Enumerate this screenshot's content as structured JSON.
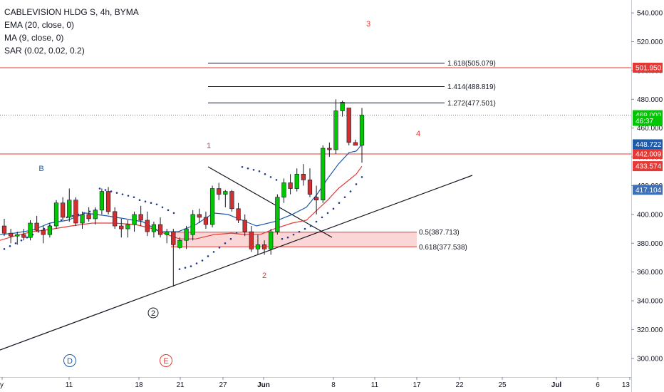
{
  "legend": {
    "symbol": "CABLEVISION HLDG S, 4h, BYMA",
    "ema": "EMA (20, close, 0)",
    "ma": "MA (9, close, 0)",
    "sar": "SAR (0.02, 0.02, 0.2)"
  },
  "colors": {
    "up": "#00c800",
    "down": "#d32f2f",
    "ema": "#e53935",
    "ma": "#1e5aa8",
    "sar": "#1e3c96",
    "hline_red": "#e53935",
    "hline_green": "#00c800",
    "fib_zone": "#f8c8c8"
  },
  "chart_data": {
    "type": "candlestick",
    "ylim": [
      292,
      548
    ],
    "y_ticks": [
      "300.000",
      "320.000",
      "340.000",
      "360.000",
      "380.000",
      "400.000",
      "420.000",
      "440.000",
      "460.000",
      "480.000",
      "500.000",
      "520.000",
      "540.000"
    ],
    "x_tick_labels": [
      "y",
      "11",
      "18",
      "21",
      "27",
      "Jun",
      "8",
      "11",
      "17",
      "22",
      "25",
      "Jul",
      "6",
      "13"
    ],
    "candles": [
      {
        "o": 392,
        "h": 397,
        "l": 385,
        "c": 387
      },
      {
        "o": 387,
        "h": 390,
        "l": 380,
        "c": 385
      },
      {
        "o": 385,
        "h": 388,
        "l": 379,
        "c": 386
      },
      {
        "o": 386,
        "h": 390,
        "l": 382,
        "c": 384
      },
      {
        "o": 384,
        "h": 396,
        "l": 382,
        "c": 394
      },
      {
        "o": 394,
        "h": 399,
        "l": 388,
        "c": 389
      },
      {
        "o": 389,
        "h": 392,
        "l": 380,
        "c": 386
      },
      {
        "o": 386,
        "h": 394,
        "l": 384,
        "c": 392
      },
      {
        "o": 392,
        "h": 410,
        "l": 390,
        "c": 408
      },
      {
        "o": 408,
        "h": 412,
        "l": 396,
        "c": 398
      },
      {
        "o": 398,
        "h": 418,
        "l": 395,
        "c": 410
      },
      {
        "o": 410,
        "h": 412,
        "l": 392,
        "c": 394
      },
      {
        "o": 394,
        "h": 402,
        "l": 390,
        "c": 400
      },
      {
        "o": 400,
        "h": 405,
        "l": 395,
        "c": 397
      },
      {
        "o": 397,
        "h": 405,
        "l": 393,
        "c": 403
      },
      {
        "o": 403,
        "h": 418,
        "l": 400,
        "c": 416
      },
      {
        "o": 416,
        "h": 419,
        "l": 400,
        "c": 402
      },
      {
        "o": 402,
        "h": 405,
        "l": 390,
        "c": 392
      },
      {
        "o": 392,
        "h": 397,
        "l": 384,
        "c": 390
      },
      {
        "o": 390,
        "h": 396,
        "l": 384,
        "c": 393
      },
      {
        "o": 393,
        "h": 402,
        "l": 388,
        "c": 400
      },
      {
        "o": 400,
        "h": 406,
        "l": 392,
        "c": 396
      },
      {
        "o": 396,
        "h": 402,
        "l": 385,
        "c": 388
      },
      {
        "o": 388,
        "h": 395,
        "l": 384,
        "c": 393
      },
      {
        "o": 393,
        "h": 398,
        "l": 384,
        "c": 386
      },
      {
        "o": 386,
        "h": 390,
        "l": 380,
        "c": 388
      },
      {
        "o": 388,
        "h": 390,
        "l": 350,
        "c": 379
      },
      {
        "o": 377,
        "h": 384,
        "l": 376,
        "c": 382
      },
      {
        "o": 382,
        "h": 392,
        "l": 376,
        "c": 390
      },
      {
        "o": 386,
        "h": 403,
        "l": 382,
        "c": 400
      },
      {
        "o": 400,
        "h": 404,
        "l": 394,
        "c": 398
      },
      {
        "o": 398,
        "h": 402,
        "l": 390,
        "c": 393
      },
      {
        "o": 393,
        "h": 420,
        "l": 391,
        "c": 418
      },
      {
        "o": 418,
        "h": 422,
        "l": 410,
        "c": 414
      },
      {
        "o": 414,
        "h": 417,
        "l": 405,
        "c": 416
      },
      {
        "o": 416,
        "h": 417,
        "l": 402,
        "c": 404
      },
      {
        "o": 404,
        "h": 408,
        "l": 394,
        "c": 396
      },
      {
        "o": 396,
        "h": 400,
        "l": 385,
        "c": 388
      },
      {
        "o": 388,
        "h": 392,
        "l": 374,
        "c": 376
      },
      {
        "o": 376,
        "h": 386,
        "l": 372,
        "c": 379
      },
      {
        "o": 379,
        "h": 382,
        "l": 372,
        "c": 376
      },
      {
        "o": 376,
        "h": 390,
        "l": 372,
        "c": 388
      },
      {
        "o": 388,
        "h": 414,
        "l": 386,
        "c": 412
      },
      {
        "o": 412,
        "h": 425,
        "l": 408,
        "c": 422
      },
      {
        "o": 422,
        "h": 428,
        "l": 414,
        "c": 418
      },
      {
        "o": 418,
        "h": 432,
        "l": 416,
        "c": 428
      },
      {
        "o": 428,
        "h": 435,
        "l": 420,
        "c": 424
      },
      {
        "o": 424,
        "h": 432,
        "l": 412,
        "c": 414
      },
      {
        "o": 412,
        "h": 420,
        "l": 400,
        "c": 410
      },
      {
        "o": 410,
        "h": 448,
        "l": 408,
        "c": 446
      },
      {
        "o": 446,
        "h": 450,
        "l": 440,
        "c": 445
      },
      {
        "o": 445,
        "h": 480,
        "l": 442,
        "c": 472
      },
      {
        "o": 472,
        "h": 479,
        "l": 468,
        "c": 478
      },
      {
        "o": 474,
        "h": 474,
        "l": 448,
        "c": 450
      },
      {
        "o": 450,
        "h": 452,
        "l": 448,
        "c": 448
      },
      {
        "o": 448,
        "h": 474,
        "l": 436,
        "c": 469
      }
    ],
    "ema": [
      [
        0,
        382
      ],
      [
        20,
        385
      ],
      [
        45,
        388
      ],
      [
        75,
        390
      ],
      [
        100,
        392
      ],
      [
        130,
        394
      ],
      [
        160,
        394
      ],
      [
        190,
        393
      ],
      [
        215,
        390
      ],
      [
        235,
        386
      ],
      [
        252,
        383
      ],
      [
        275,
        383
      ],
      [
        300,
        386
      ],
      [
        325,
        387
      ],
      [
        345,
        386
      ],
      [
        365,
        386
      ],
      [
        385,
        390
      ],
      [
        410,
        394
      ],
      [
        430,
        396
      ],
      [
        445,
        403
      ],
      [
        460,
        410
      ],
      [
        475,
        418
      ],
      [
        490,
        424
      ],
      [
        500,
        428
      ],
      [
        508,
        433.5
      ]
    ],
    "ma": [
      [
        0,
        386
      ],
      [
        20,
        387
      ],
      [
        45,
        389
      ],
      [
        70,
        394
      ],
      [
        95,
        396
      ],
      [
        120,
        401
      ],
      [
        150,
        399
      ],
      [
        175,
        397
      ],
      [
        200,
        395
      ],
      [
        225,
        388
      ],
      [
        250,
        388
      ],
      [
        275,
        393
      ],
      [
        300,
        401
      ],
      [
        320,
        400
      ],
      [
        340,
        396
      ],
      [
        360,
        392
      ],
      [
        385,
        395
      ],
      [
        410,
        400
      ],
      [
        430,
        405
      ],
      [
        445,
        414
      ],
      [
        460,
        425
      ],
      [
        475,
        435
      ],
      [
        490,
        443
      ],
      [
        500,
        444
      ],
      [
        508,
        448.7
      ]
    ],
    "sar": [
      [
        6,
        376
      ],
      [
        14,
        378
      ],
      [
        22,
        380
      ],
      [
        30,
        382
      ],
      [
        38,
        384
      ],
      [
        46,
        386
      ],
      [
        54,
        388
      ],
      [
        62,
        390
      ],
      [
        70,
        392
      ],
      [
        78,
        394
      ],
      [
        86,
        396
      ],
      [
        94,
        398
      ],
      [
        102,
        399
      ],
      [
        110,
        400
      ],
      [
        118,
        401
      ],
      [
        126,
        402
      ],
      [
        134,
        403
      ],
      [
        140,
        418
      ],
      [
        148,
        417
      ],
      [
        156,
        416
      ],
      [
        164,
        415
      ],
      [
        172,
        414
      ],
      [
        180,
        413
      ],
      [
        188,
        412
      ],
      [
        196,
        410
      ],
      [
        204,
        409
      ],
      [
        212,
        408
      ],
      [
        220,
        407
      ],
      [
        228,
        405
      ],
      [
        236,
        403
      ],
      [
        244,
        401
      ],
      [
        252,
        362
      ],
      [
        260,
        363
      ],
      [
        268,
        364
      ],
      [
        276,
        366
      ],
      [
        284,
        368
      ],
      [
        292,
        371
      ],
      [
        300,
        374
      ],
      [
        308,
        377
      ],
      [
        316,
        380
      ],
      [
        324,
        383
      ],
      [
        332,
        387
      ],
      [
        340,
        433
      ],
      [
        348,
        432
      ],
      [
        356,
        431
      ],
      [
        364,
        430
      ],
      [
        372,
        428
      ],
      [
        380,
        426
      ],
      [
        388,
        424
      ],
      [
        396,
        383
      ],
      [
        404,
        384
      ],
      [
        412,
        386
      ],
      [
        420,
        388
      ],
      [
        428,
        390
      ],
      [
        436,
        392
      ],
      [
        444,
        395
      ],
      [
        452,
        398
      ],
      [
        460,
        401
      ],
      [
        468,
        404
      ],
      [
        476,
        408
      ],
      [
        484,
        412
      ],
      [
        492,
        416
      ],
      [
        500,
        421
      ],
      [
        508,
        426
      ]
    ]
  },
  "price_tags": [
    {
      "label": "501.950",
      "value": 501.95,
      "color": "#e53935"
    },
    {
      "label": "469.000",
      "value": 469.0,
      "color": "#00c800"
    },
    {
      "label": "46:37",
      "value": 465.0,
      "color": "#00c800"
    },
    {
      "label": "448.722",
      "value": 448.722,
      "color": "#1e5aa8"
    },
    {
      "label": "442.009",
      "value": 442.009,
      "color": "#e53935"
    },
    {
      "label": "433.574",
      "value": 433.574,
      "color": "#e53935"
    },
    {
      "label": "417.104",
      "value": 417.104,
      "color": "#3f6fb5"
    }
  ],
  "fib_levels": [
    {
      "label": "1.618(505.079)",
      "value": 505.079
    },
    {
      "label": "1.414(488.819)",
      "value": 488.819
    },
    {
      "label": "1.272(477.501)",
      "value": 477.501
    }
  ],
  "fib_zone_labels": {
    "upper": "0.5(387.713)",
    "lower": "0.618(377.538)",
    "upper_value": 387.713,
    "lower_value": 377.538
  },
  "horizontal_lines": {
    "red_upper": 501.95,
    "red_lower": 442.009,
    "green_dotted": 469.0
  },
  "annotations": {
    "wave_3": "3",
    "wave_1": "1",
    "wave_4": "4",
    "wave_2": "2",
    "wave_b": "B",
    "circled_2": "2",
    "event_d": "D",
    "event_e": "E"
  }
}
